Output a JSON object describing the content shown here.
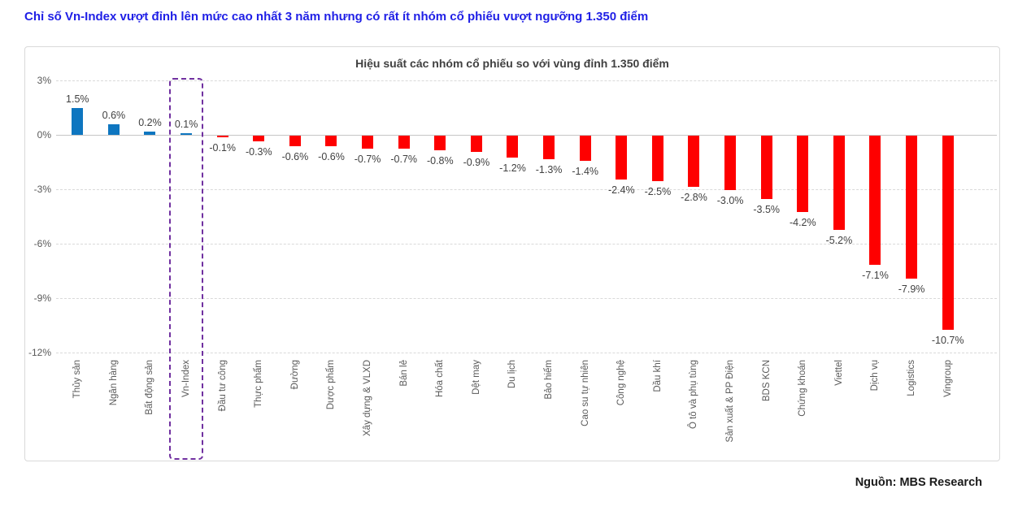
{
  "page_title": "Chỉ số Vn-Index vượt đỉnh lên mức cao nhất 3 năm nhưng có rất ít nhóm cổ phiếu vượt ngưỡng 1.350 điểm",
  "source": "Nguồn: MBS Research",
  "colors": {
    "page_title": "#1f1fe6",
    "positive_bar": "#0e76c0",
    "negative_bar": "#fe0000",
    "highlight_box": "#7030a0",
    "gridline": "#d9d9d9",
    "axis_text": "#595959",
    "value_text": "#404040"
  },
  "chart_data": {
    "type": "bar",
    "title": "Hiệu suất các nhóm cổ phiếu so với vùng đỉnh 1.350 điểm",
    "xlabel": "",
    "ylabel": "",
    "ylim": [
      -12,
      3
    ],
    "yticks": [
      3,
      0,
      -3,
      -6,
      -9,
      -12
    ],
    "ytick_labels": [
      "3%",
      "0%",
      "-3%",
      "-6%",
      "-9%",
      "-12%"
    ],
    "grid": "horizontal-dashed",
    "legend": "none",
    "categories": [
      "Thủy sản",
      "Ngân hàng",
      "Bất động sản",
      "Vn-Index",
      "Đầu tư công",
      "Thực phẩm",
      "Đường",
      "Dược phẩm",
      "Xây dựng & VLXD",
      "Bán lẻ",
      "Hóa chất",
      "Dệt may",
      "Du lịch",
      "Bảo hiểm",
      "Cao su tự nhiên",
      "Công nghệ",
      "Dầu khí",
      "Ô tô và phụ tùng",
      "Sản xuất & PP Điện",
      "BDS KCN",
      "Chứng khoán",
      "Viettel",
      "Dịch vụ",
      "Logistics",
      "Vingroup"
    ],
    "values": [
      1.5,
      0.6,
      0.2,
      0.1,
      -0.1,
      -0.3,
      -0.6,
      -0.6,
      -0.7,
      -0.7,
      -0.8,
      -0.9,
      -1.2,
      -1.3,
      -1.4,
      -2.4,
      -2.5,
      -2.8,
      -3.0,
      -3.5,
      -4.2,
      -5.2,
      -7.1,
      -7.9,
      -10.7
    ],
    "value_labels": [
      "1.5%",
      "0.6%",
      "0.2%",
      "0.1%",
      "-0.1%",
      "-0.3%",
      "-0.6%",
      "-0.6%",
      "-0.7%",
      "-0.7%",
      "-0.8%",
      "-0.9%",
      "-1.2%",
      "-1.3%",
      "-1.4%",
      "-2.4%",
      "-2.5%",
      "-2.8%",
      "-3.0%",
      "-3.5%",
      "-4.2%",
      "-5.2%",
      "-7.1%",
      "-7.9%",
      "-10.7%"
    ],
    "highlight": {
      "category": "Vn-Index",
      "index": 3
    }
  }
}
